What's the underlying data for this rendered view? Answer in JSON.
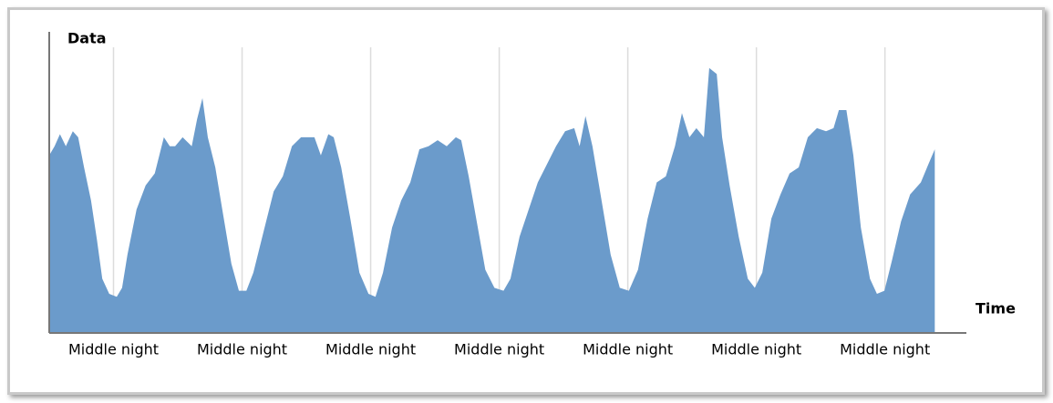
{
  "chart_data": {
    "type": "area",
    "x_label": "Time",
    "y_label": "Data",
    "color": "#6b9bcb",
    "grid": true,
    "xlim": [
      0,
      171.2
    ],
    "ylim": [
      0,
      100
    ],
    "xticks": [
      {
        "value": 12,
        "label": "Middle night"
      },
      {
        "value": 36,
        "label": "Middle night"
      },
      {
        "value": 60,
        "label": "Middle night"
      },
      {
        "value": 84,
        "label": "Middle night"
      },
      {
        "value": 108,
        "label": "Middle night"
      },
      {
        "value": 132,
        "label": "Middle night"
      },
      {
        "value": 156,
        "label": "Middle night"
      }
    ],
    "x": [
      0,
      1.0,
      2.0,
      3.1,
      4.4,
      5.4,
      6.5,
      7.8,
      8.9,
      9.9,
      11.2,
      12.6,
      13.6,
      14.6,
      16.3,
      18.0,
      19.7,
      21.4,
      22.5,
      23.5,
      24.9,
      26.6,
      27.6,
      28.6,
      29.6,
      31.0,
      32.3,
      34.0,
      35.4,
      36.8,
      38.1,
      40.2,
      41.9,
      43.6,
      45.3,
      47.0,
      49.5,
      50.7,
      52.1,
      53.1,
      54.5,
      56.2,
      57.9,
      59.6,
      60.9,
      62.3,
      64.0,
      65.7,
      67.4,
      69.1,
      70.8,
      72.5,
      74.2,
      75.9,
      76.9,
      78.3,
      79.7,
      81.4,
      83.1,
      84.8,
      86.1,
      87.8,
      89.5,
      91.2,
      92.9,
      94.6,
      96.3,
      98.0,
      99.0,
      100.1,
      101.4,
      103.1,
      104.8,
      106.5,
      108.2,
      109.9,
      111.7,
      113.4,
      115.1,
      116.8,
      118.1,
      119.5,
      120.8,
      122.2,
      123.2,
      124.6,
      125.6,
      127.0,
      128.7,
      130.4,
      131.7,
      133.1,
      134.8,
      136.5,
      138.2,
      139.9,
      141.6,
      143.3,
      145.0,
      146.4,
      147.4,
      148.8,
      150.1,
      151.5,
      153.2,
      154.5,
      155.9,
      157.3,
      159.0,
      160.7,
      162.7,
      164.1,
      165.3
    ],
    "values": [
      59,
      62,
      66,
      62,
      67,
      65,
      55,
      44,
      31,
      18,
      13,
      12,
      15,
      26,
      41,
      49,
      53,
      65,
      62,
      62,
      65,
      62,
      71,
      78,
      65,
      55,
      41,
      23,
      14,
      14,
      20,
      35,
      47,
      52,
      62,
      65,
      65,
      59,
      66,
      65,
      55,
      38,
      20,
      13,
      12,
      20,
      35,
      44,
      50,
      61,
      62,
      64,
      62,
      65,
      64,
      52,
      38,
      21,
      15,
      14,
      18,
      32,
      41,
      50,
      56,
      62,
      67,
      68,
      62,
      72,
      62,
      44,
      26,
      15,
      14,
      21,
      38,
      50,
      52,
      62,
      73,
      65,
      68,
      65,
      88,
      86,
      65,
      49,
      32,
      18,
      15,
      20,
      38,
      46,
      53,
      55,
      65,
      68,
      67,
      68,
      74,
      74,
      59,
      35,
      18,
      13,
      14,
      24,
      37,
      46,
      50,
      56,
      61
    ]
  }
}
